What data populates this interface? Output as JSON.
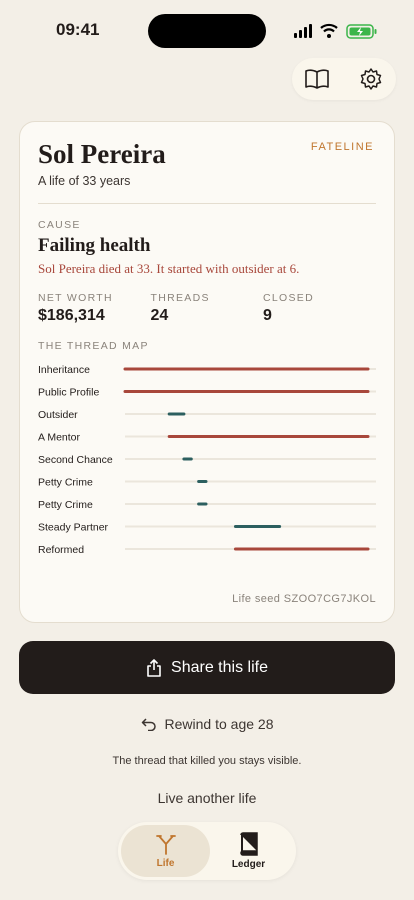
{
  "status_bar": {
    "time": "09:41"
  },
  "card": {
    "brand": "FATELINE",
    "name": "Sol Pereira",
    "subtitle": "A life of 33 years",
    "cause": {
      "label": "CAUSE",
      "title": "Failing health",
      "description": "Sol Pereira died at 33. It started with outsider at 6."
    },
    "stats": [
      {
        "label": "NET WORTH",
        "value": "$186,314"
      },
      {
        "label": "THREADS",
        "value": "24"
      },
      {
        "label": "CLOSED",
        "value": "9"
      }
    ],
    "thread_map": {
      "title": "THE THREAD MAP",
      "xlim": [
        0,
        33
      ],
      "threads": [
        {
          "name": "Inheritance",
          "start": 0,
          "end": 33,
          "color": "#a8473b"
        },
        {
          "name": "Public Profile",
          "start": 0,
          "end": 33,
          "color": "#a8473b"
        },
        {
          "name": "Outsider",
          "start": 6,
          "end": 8,
          "color": "#2c5f5f"
        },
        {
          "name": "A Mentor",
          "start": 6,
          "end": 33,
          "color": "#a8473b"
        },
        {
          "name": "Second Chance",
          "start": 8,
          "end": 9,
          "color": "#2c5f5f"
        },
        {
          "name": "Petty Crime",
          "start": 10,
          "end": 11,
          "color": "#2c5f5f"
        },
        {
          "name": "Petty Crime",
          "start": 10,
          "end": 11,
          "color": "#2c5f5f"
        },
        {
          "name": "Steady Partner",
          "start": 15,
          "end": 21,
          "color": "#2c5f5f"
        },
        {
          "name": "Reformed",
          "start": 15,
          "end": 33,
          "color": "#a8473b"
        }
      ]
    },
    "seed": "Life seed SZOO7CG7JKOL"
  },
  "actions": {
    "share": "Share this life",
    "rewind": "Rewind to age 28",
    "note": "The thread that killed you stays visible.",
    "new_life": "Live another life"
  },
  "tab_bar": {
    "tabs": [
      {
        "label": "Life",
        "selected": true
      },
      {
        "label": "Ledger",
        "selected": false
      }
    ]
  }
}
